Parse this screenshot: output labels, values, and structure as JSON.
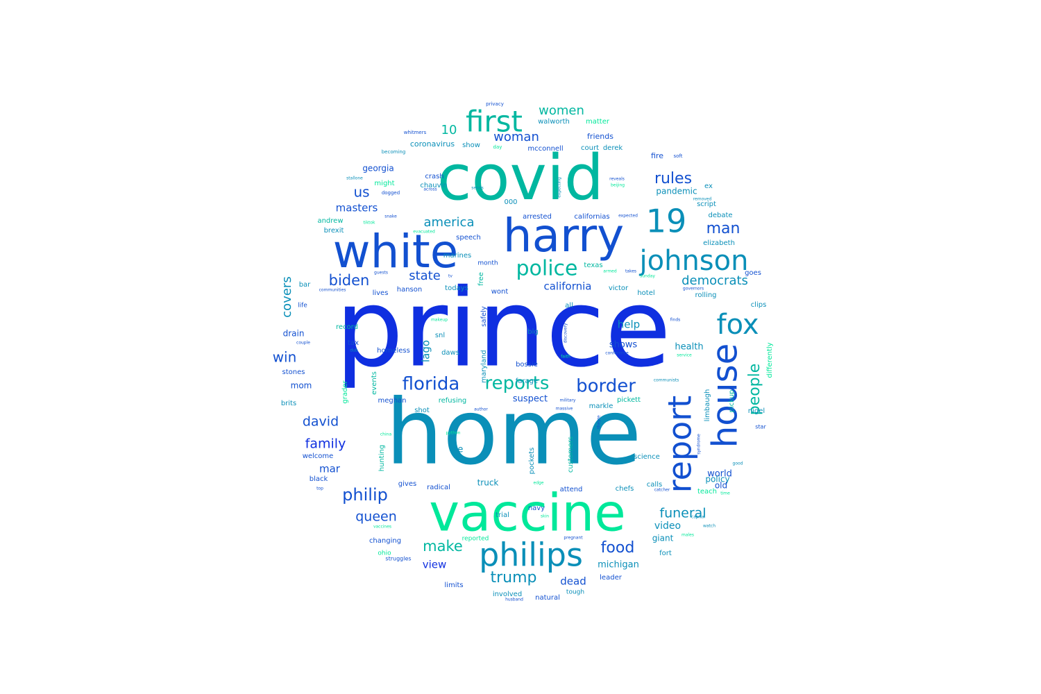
{
  "word_cloud": {
    "shape": "circle",
    "colormap": [
      "#0f2fe0",
      "#1250d0",
      "#0a8fb8",
      "#00b7a0",
      "#00e89a"
    ],
    "words": [
      {
        "text": "prince",
        "weight": 100
      },
      {
        "text": "home",
        "weight": 88
      },
      {
        "text": "covid",
        "weight": 64
      },
      {
        "text": "vaccine",
        "weight": 58
      },
      {
        "text": "harry",
        "weight": 52
      },
      {
        "text": "white",
        "weight": 52
      },
      {
        "text": "house",
        "weight": 38
      },
      {
        "text": "report",
        "weight": 36
      },
      {
        "text": "philips",
        "weight": 34
      },
      {
        "text": "19",
        "weight": 34
      },
      {
        "text": "johnson",
        "weight": 32
      },
      {
        "text": "fox",
        "weight": 32
      },
      {
        "text": "first",
        "weight": 32
      },
      {
        "text": "police",
        "weight": 26
      },
      {
        "text": "florida",
        "weight": 26
      },
      {
        "text": "reports",
        "weight": 26
      },
      {
        "text": "border",
        "weight": 26
      },
      {
        "text": "philip",
        "weight": 24
      },
      {
        "text": "people",
        "weight": 24
      },
      {
        "text": "rules",
        "weight": 24
      },
      {
        "text": "man",
        "weight": 24
      },
      {
        "text": "biden",
        "weight": 22
      },
      {
        "text": "make",
        "weight": 22
      },
      {
        "text": "trump",
        "weight": 22
      },
      {
        "text": "food",
        "weight": 22
      },
      {
        "text": "david",
        "weight": 20
      },
      {
        "text": "family",
        "weight": 20
      },
      {
        "text": "queen",
        "weight": 20
      },
      {
        "text": "funeral",
        "weight": 20
      },
      {
        "text": "win",
        "weight": 20
      },
      {
        "text": "democrats",
        "weight": 20
      },
      {
        "text": "state",
        "weight": 20
      },
      {
        "text": "us",
        "weight": 20
      },
      {
        "text": "america",
        "weight": 20
      },
      {
        "text": "covers",
        "weight": 20
      },
      {
        "text": "10",
        "weight": 20
      },
      {
        "text": "woman",
        "weight": 20
      },
      {
        "text": "women",
        "weight": 20
      },
      {
        "text": "masters",
        "weight": 18
      },
      {
        "text": "help",
        "weight": 18
      },
      {
        "text": "lago",
        "weight": 18
      },
      {
        "text": "california",
        "weight": 16
      },
      {
        "text": "view",
        "weight": 18
      },
      {
        "text": "dead",
        "weight": 18
      },
      {
        "text": "mar",
        "weight": 16
      },
      {
        "text": "video",
        "weight": 14
      },
      {
        "text": "suspect",
        "weight": 14
      },
      {
        "text": "michigan",
        "weight": 14
      },
      {
        "text": "health",
        "weight": 14
      },
      {
        "text": "shows",
        "weight": 14
      },
      {
        "text": "ice",
        "weight": 14
      },
      {
        "text": "world",
        "weight": 14
      },
      {
        "text": "giant",
        "weight": 13
      },
      {
        "text": "pandemic",
        "weight": 13
      },
      {
        "text": "georgia",
        "weight": 13
      },
      {
        "text": "drain",
        "weight": 13
      },
      {
        "text": "truck",
        "weight": 13
      },
      {
        "text": "policy",
        "weight": 13
      },
      {
        "text": "old",
        "weight": 13
      },
      {
        "text": "mom",
        "weight": 13
      },
      {
        "text": "coronavirus",
        "weight": 12
      },
      {
        "text": "friends",
        "weight": 12
      },
      {
        "text": "fire",
        "weight": 12
      },
      {
        "text": "snl",
        "weight": 11
      },
      {
        "text": "customers",
        "weight": 11
      },
      {
        "text": "supreme",
        "weight": 11
      },
      {
        "text": "pockets",
        "weight": 11
      },
      {
        "text": "markle",
        "weight": 11
      },
      {
        "text": "pickett",
        "weight": 11
      },
      {
        "text": "meghan",
        "weight": 11
      },
      {
        "text": "refusing",
        "weight": 11
      },
      {
        "text": "limbaugh",
        "weight": 11
      },
      {
        "text": "hunting",
        "weight": 11
      },
      {
        "text": "grader",
        "weight": 11
      },
      {
        "text": "events",
        "weight": 11
      },
      {
        "text": "homeless",
        "weight": 11
      },
      {
        "text": "maryland",
        "weight": 10
      },
      {
        "text": "safely",
        "weight": 10
      },
      {
        "text": "free",
        "weight": 10
      },
      {
        "text": "daws",
        "weight": 10
      },
      {
        "text": "differently",
        "weight": 10
      },
      {
        "text": "pickup",
        "weight": 10
      },
      {
        "text": "science",
        "weight": 10
      },
      {
        "text": "chefs",
        "weight": 10
      },
      {
        "text": "calls",
        "weight": 10
      },
      {
        "text": "teach",
        "weight": 10
      },
      {
        "text": "attend",
        "weight": 10
      },
      {
        "text": "radical",
        "weight": 10
      },
      {
        "text": "gives",
        "weight": 10
      },
      {
        "text": "natural",
        "weight": 10
      },
      {
        "text": "involved",
        "weight": 10
      },
      {
        "text": "limits",
        "weight": 10
      },
      {
        "text": "changing",
        "weight": 10
      },
      {
        "text": "navy",
        "weight": 10
      },
      {
        "text": "trial",
        "weight": 10
      },
      {
        "text": "leader",
        "weight": 10
      },
      {
        "text": "fort",
        "weight": 10
      },
      {
        "text": "tough",
        "weight": 9
      },
      {
        "text": "crash",
        "weight": 10
      },
      {
        "text": "chauvin",
        "weight": 10
      },
      {
        "text": "might",
        "weight": 10
      },
      {
        "text": "andrew",
        "weight": 10
      },
      {
        "text": "brexit",
        "weight": 10
      },
      {
        "text": "speech",
        "weight": 10
      },
      {
        "text": "arrested",
        "weight": 10
      },
      {
        "text": "californias",
        "weight": 10
      },
      {
        "text": "texas",
        "weight": 10
      },
      {
        "text": "victor",
        "weight": 10
      },
      {
        "text": "hotel",
        "weight": 10
      },
      {
        "text": "rolling",
        "weight": 10
      },
      {
        "text": "goes",
        "weight": 10
      },
      {
        "text": "clips",
        "weight": 10
      },
      {
        "text": "debate",
        "weight": 10
      },
      {
        "text": "script",
        "weight": 10
      },
      {
        "text": "ex",
        "weight": 10
      },
      {
        "text": "elizabeth",
        "weight": 10
      },
      {
        "text": "000",
        "weight": 10
      },
      {
        "text": "stones",
        "weight": 10
      },
      {
        "text": "brits",
        "weight": 10
      },
      {
        "text": "welcome",
        "weight": 10
      },
      {
        "text": "black",
        "weight": 10
      },
      {
        "text": "bar",
        "weight": 10
      },
      {
        "text": "lives",
        "weight": 10
      },
      {
        "text": "hanson",
        "weight": 10
      },
      {
        "text": "todays",
        "weight": 10
      },
      {
        "text": "wont",
        "weight": 10
      },
      {
        "text": "big",
        "weight": 10
      },
      {
        "text": "bossie",
        "weight": 10
      },
      {
        "text": "farage",
        "weight": 10
      },
      {
        "text": "record",
        "weight": 10
      },
      {
        "text": "tax",
        "weight": 10
      },
      {
        "text": "all",
        "weight": 10
      },
      {
        "text": "shot",
        "weight": 10
      },
      {
        "text": "nigel",
        "weight": 10
      },
      {
        "text": "mcconnell",
        "weight": 10
      },
      {
        "text": "show",
        "weight": 10
      },
      {
        "text": "court",
        "weight": 10
      },
      {
        "text": "derek",
        "weight": 10
      },
      {
        "text": "walworth",
        "weight": 10
      },
      {
        "text": "matter",
        "weight": 10
      },
      {
        "text": "marines",
        "weight": 10
      },
      {
        "text": "month",
        "weight": 9
      },
      {
        "text": "reported",
        "weight": 9
      },
      {
        "text": "ohio",
        "weight": 9
      },
      {
        "text": "struggles",
        "weight": 8
      },
      {
        "text": "life",
        "weight": 9
      },
      {
        "text": "star",
        "weight": 8
      },
      {
        "text": "privacy",
        "weight": 7
      },
      {
        "text": "whitmers",
        "weight": 7
      },
      {
        "text": "day",
        "weight": 7
      },
      {
        "text": "becoming",
        "weight": 7
      },
      {
        "text": "soft",
        "weight": 7
      },
      {
        "text": "stallone",
        "weight": 6
      },
      {
        "text": "dogged",
        "weight": 7
      },
      {
        "text": "across",
        "weight": 6
      },
      {
        "text": "sends",
        "weight": 6
      },
      {
        "text": "expecting",
        "weight": 6
      },
      {
        "text": "reveals",
        "weight": 6
      },
      {
        "text": "beijing",
        "weight": 6
      },
      {
        "text": "removed",
        "weight": 6
      },
      {
        "text": "tiktok",
        "weight": 6
      },
      {
        "text": "snake",
        "weight": 6
      },
      {
        "text": "evacuated",
        "weight": 6
      },
      {
        "text": "expected",
        "weight": 6
      },
      {
        "text": "guests",
        "weight": 6
      },
      {
        "text": "tv",
        "weight": 6
      },
      {
        "text": "armed",
        "weight": 6
      },
      {
        "text": "takes",
        "weight": 6
      },
      {
        "text": "sunday",
        "weight": 6
      },
      {
        "text": "communities",
        "weight": 6
      },
      {
        "text": "governors",
        "weight": 6
      },
      {
        "text": "makeup",
        "weight": 6
      },
      {
        "text": "finds",
        "weight": 6
      },
      {
        "text": "discovery",
        "weight": 6
      },
      {
        "text": "couple",
        "weight": 6
      },
      {
        "text": "dub",
        "weight": 6
      },
      {
        "text": "faith",
        "weight": 6
      },
      {
        "text": "conference",
        "weight": 6
      },
      {
        "text": "service",
        "weight": 6
      },
      {
        "text": "communists",
        "weight": 6
      },
      {
        "text": "military",
        "weight": 6
      },
      {
        "text": "massive",
        "weight": 6
      },
      {
        "text": "author",
        "weight": 6
      },
      {
        "text": "theyre",
        "weight": 6
      },
      {
        "text": "china",
        "weight": 6
      },
      {
        "text": "python",
        "weight": 6
      },
      {
        "text": "syndrome",
        "weight": 6
      },
      {
        "text": "good",
        "weight": 6
      },
      {
        "text": "top",
        "weight": 6
      },
      {
        "text": "edge",
        "weight": 6
      },
      {
        "text": "catcher",
        "weight": 6
      },
      {
        "text": "time",
        "weight": 6
      },
      {
        "text": "vaccines",
        "weight": 6
      },
      {
        "text": "skin",
        "weight": 6
      },
      {
        "text": "pregnant",
        "weight": 6
      },
      {
        "text": "capital",
        "weight": 6
      },
      {
        "text": "watch",
        "weight": 6
      },
      {
        "text": "males",
        "weight": 6
      },
      {
        "text": "husband",
        "weight": 6
      }
    ]
  }
}
